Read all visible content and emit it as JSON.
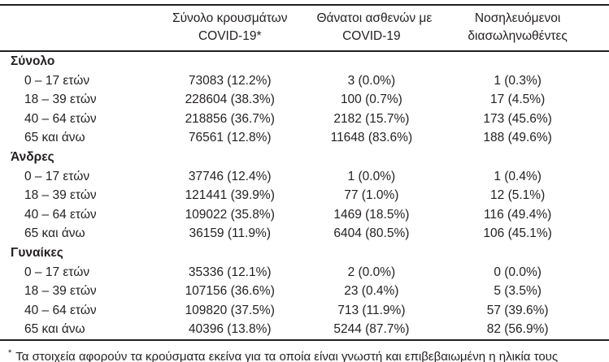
{
  "table": {
    "columns": [
      {
        "line1": "",
        "line2": ""
      },
      {
        "line1": "Σύνολο κρουσμάτων",
        "line2": "COVID-19*"
      },
      {
        "line1": "Θάνατοι ασθενών με",
        "line2": "COVID-19"
      },
      {
        "line1": "Νοσηλευόμενοι",
        "line2": "διασωληνωθέντες"
      }
    ],
    "sections": [
      {
        "label": "Σύνολο",
        "rows": [
          {
            "age": "0 – 17 ετών",
            "cases": "73083 (12.2%)",
            "deaths": "3 (0.0%)",
            "intubated": "1 (0.3%)"
          },
          {
            "age": "18 – 39 ετών",
            "cases": "228604 (38.3%)",
            "deaths": "100 (0.7%)",
            "intubated": "17 (4.5%)"
          },
          {
            "age": "40 – 64 ετών",
            "cases": "218856 (36.7%)",
            "deaths": "2182 (15.7%)",
            "intubated": "173 (45.6%)"
          },
          {
            "age": "65 και άνω",
            "cases": "76561 (12.8%)",
            "deaths": "11648 (83.6%)",
            "intubated": "188 (49.6%)"
          }
        ]
      },
      {
        "label": "Άνδρες",
        "rows": [
          {
            "age": "0 – 17 ετών",
            "cases": "37746 (12.4%)",
            "deaths": "1 (0.0%)",
            "intubated": "1 (0.4%)"
          },
          {
            "age": "18 – 39 ετών",
            "cases": "121441 (39.9%)",
            "deaths": "77 (1.0%)",
            "intubated": "12 (5.1%)"
          },
          {
            "age": "40 – 64 ετών",
            "cases": "109022 (35.8%)",
            "deaths": "1469 (18.5%)",
            "intubated": "116 (49.4%)"
          },
          {
            "age": "65 και άνω",
            "cases": "36159 (11.9%)",
            "deaths": "6404 (80.5%)",
            "intubated": "106 (45.1%)"
          }
        ]
      },
      {
        "label": "Γυναίκες",
        "rows": [
          {
            "age": "0 – 17 ετών",
            "cases": "35336 (12.1%)",
            "deaths": "2 (0.0%)",
            "intubated": "0 (0.0%)"
          },
          {
            "age": "18 – 39 ετών",
            "cases": "107156 (36.6%)",
            "deaths": "23 (0.4%)",
            "intubated": "5 (3.5%)"
          },
          {
            "age": "40 – 64 ετών",
            "cases": "109820 (37.5%)",
            "deaths": "713 (11.9%)",
            "intubated": "57 (39.6%)"
          },
          {
            "age": "65 και άνω",
            "cases": "40396 (13.8%)",
            "deaths": "5244 (87.7%)",
            "intubated": "82 (56.9%)"
          }
        ]
      }
    ],
    "footnote": {
      "marker": "*",
      "text": "Τα στοιχεία αφορούν τα κρούσματα εκείνα για τα οποία είναι γνωστή και επιβεβαιωμένη η ηλικία τους"
    }
  },
  "colors": {
    "text": "#231f20",
    "rule": "#231f20",
    "background": "#ffffff"
  }
}
